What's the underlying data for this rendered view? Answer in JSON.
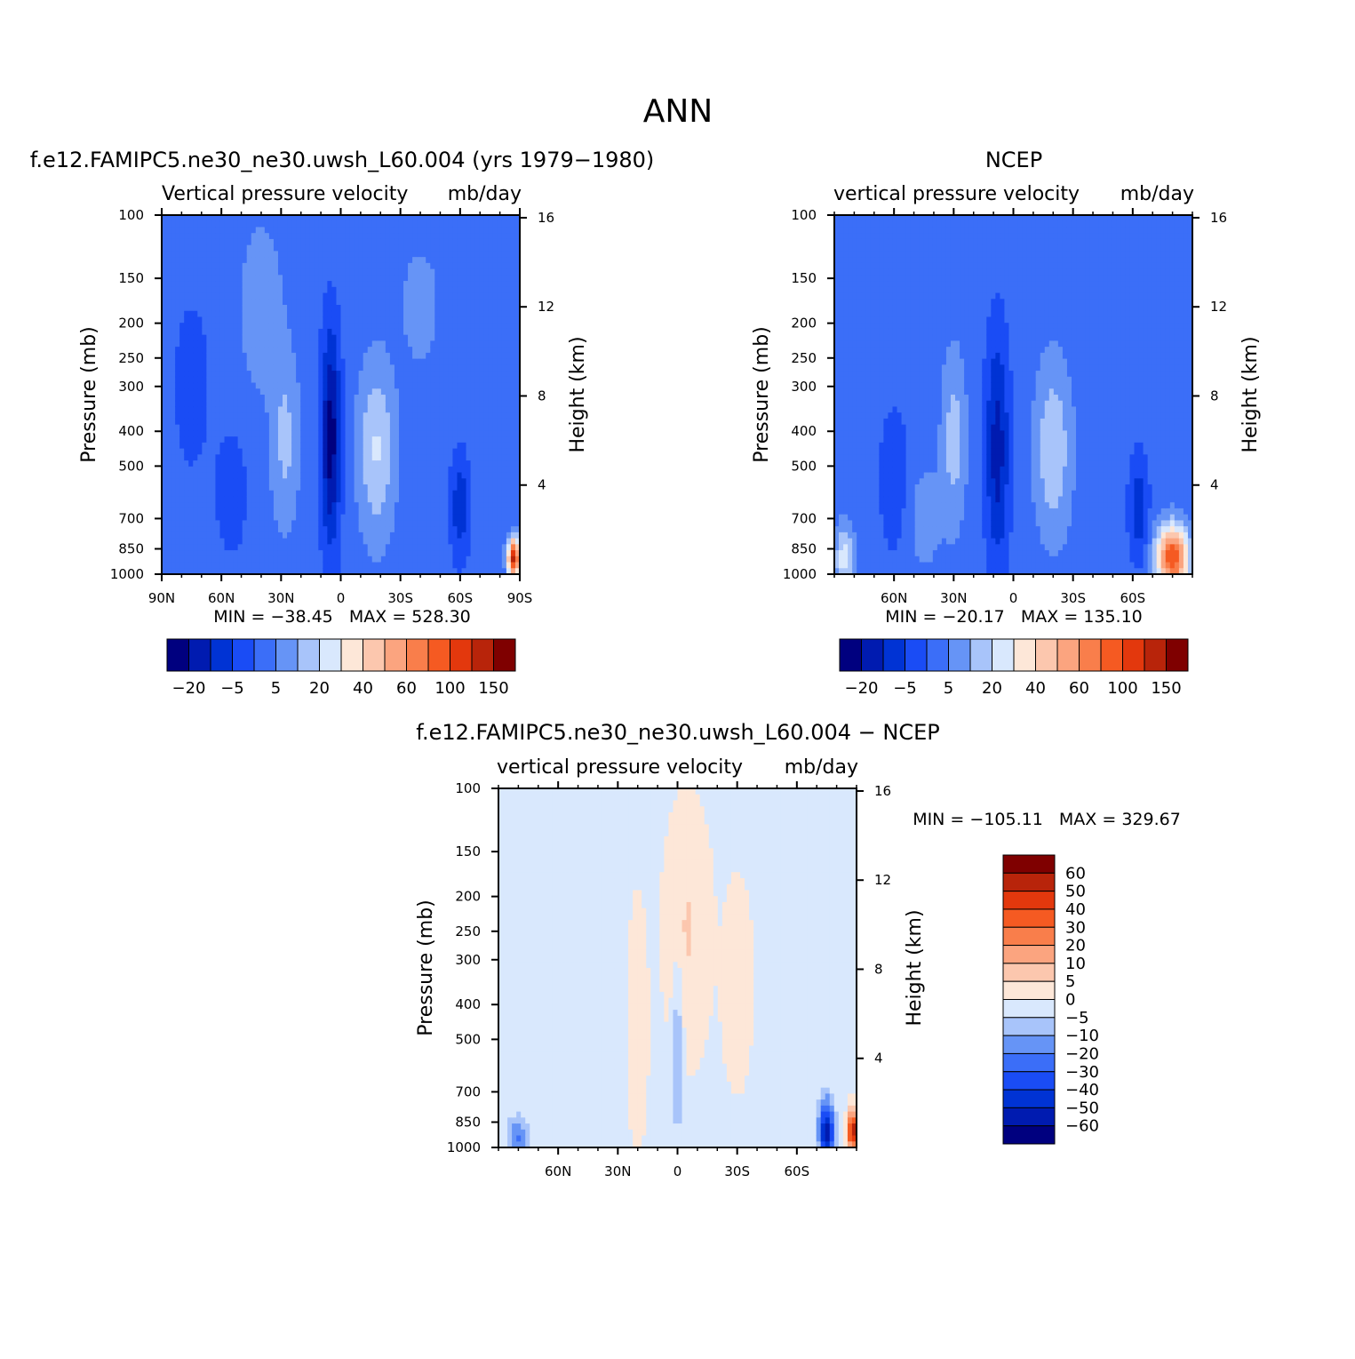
{
  "figure": {
    "title": "ANN"
  },
  "colors": {
    "main_scale": [
      "#00007f",
      "#001bb0",
      "#0033d4",
      "#1a4cf5",
      "#3b6ef8",
      "#6694f6",
      "#a8c4fa",
      "#d9e8fd",
      "#fde7d8",
      "#fcc7ae",
      "#fba47f",
      "#f97e4b",
      "#f55a22",
      "#e3380d",
      "#b8240a",
      "#7f0000"
    ],
    "diff_scale": [
      "#00007f",
      "#001bb0",
      "#0033d4",
      "#1a4cf5",
      "#3b6ef8",
      "#6694f6",
      "#a8c4fa",
      "#d9e8fd",
      "#fde7d8",
      "#fcc7ae",
      "#fba47f",
      "#f97e4b",
      "#f55a22",
      "#e3380d",
      "#b8240a",
      "#7f0000"
    ]
  },
  "chart_data": [
    {
      "id": "model",
      "type": "contour",
      "title": "f.e12.FAMIPC5.ne30_ne30.uwsh_L60.004 (yrs 1979−1980)",
      "variable": "Vertical pressure velocity",
      "units": "mb/day",
      "ylabel": "Pressure (mb)",
      "y2label": "Height (km)",
      "xticks": [
        "90N",
        "60N",
        "30N",
        "0",
        "30S",
        "60S",
        "90S"
      ],
      "xlim": [
        90,
        -90
      ],
      "yticks": [
        100,
        150,
        200,
        250,
        300,
        400,
        500,
        700,
        850,
        1000
      ],
      "ylim": [
        1000,
        100
      ],
      "yscale": "log",
      "y2ticks": [
        16,
        12,
        8,
        4
      ],
      "min": "-38.45",
      "max": "528.30",
      "stats_text": "MIN = −38.45   MAX = 528.30",
      "colorbar_labels": [
        "−20",
        "−5",
        "5",
        "20",
        "40",
        "60",
        "100",
        "150"
      ],
      "fields": {
        "base": 4,
        "blobs": [
          {
            "lat": 5,
            "lat_w": 5,
            "p": 420,
            "p_w": 0.7,
            "amp": -4.0
          },
          {
            "lat": -18,
            "lat_w": 9,
            "p": 450,
            "p_w": 0.55,
            "amp": 2.6
          },
          {
            "lat": 28,
            "lat_w": 7,
            "p": 420,
            "p_w": 0.55,
            "amp": 1.8
          },
          {
            "lat": -60,
            "lat_w": 5,
            "p": 650,
            "p_w": 0.35,
            "amp": -2.2
          },
          {
            "lat": 55,
            "lat_w": 8,
            "p": 600,
            "p_w": 0.4,
            "amp": -1.2
          },
          {
            "lat": 75,
            "lat_w": 10,
            "p": 300,
            "p_w": 0.6,
            "amp": -1.0
          },
          {
            "lat": 40,
            "lat_w": 10,
            "p": 180,
            "p_w": 0.5,
            "amp": 1.4
          },
          {
            "lat": -40,
            "lat_w": 10,
            "p": 180,
            "p_w": 0.4,
            "amp": 1.0
          },
          {
            "lat": -87,
            "lat_w": 3,
            "p": 900,
            "p_w": 0.12,
            "amp": 10.0
          }
        ]
      }
    },
    {
      "id": "obs",
      "type": "contour",
      "title": "NCEP",
      "variable": "vertical pressure velocity",
      "units": "mb/day",
      "ylabel": "Pressure (mb)",
      "y2label": "Height (km)",
      "xticks": [
        "60N",
        "30N",
        "0",
        "30S",
        "60S"
      ],
      "xlim": [
        90,
        -90
      ],
      "yticks": [
        100,
        150,
        200,
        250,
        300,
        400,
        500,
        700,
        850,
        1000
      ],
      "ylim": [
        1000,
        100
      ],
      "yscale": "log",
      "y2ticks": [
        16,
        12,
        8,
        4
      ],
      "min": "-20.17",
      "max": "135.10",
      "stats_text": "MIN = −20.17   MAX = 135.10",
      "colorbar_labels": [
        "−20",
        "−5",
        "5",
        "20",
        "40",
        "60",
        "100",
        "150"
      ],
      "fields": {
        "base": 4,
        "blobs": [
          {
            "lat": 8,
            "lat_w": 6,
            "p": 450,
            "p_w": 0.75,
            "amp": -3.0
          },
          {
            "lat": -20,
            "lat_w": 9,
            "p": 450,
            "p_w": 0.55,
            "amp": 2.4
          },
          {
            "lat": 30,
            "lat_w": 6,
            "p": 420,
            "p_w": 0.55,
            "amp": 2.0
          },
          {
            "lat": -63,
            "lat_w": 5,
            "p": 650,
            "p_w": 0.35,
            "amp": -2.2
          },
          {
            "lat": 60,
            "lat_w": 7,
            "p": 550,
            "p_w": 0.45,
            "amp": -1.5
          },
          {
            "lat": 45,
            "lat_w": 9,
            "p": 700,
            "p_w": 0.35,
            "amp": 1.0
          },
          {
            "lat": 85,
            "lat_w": 5,
            "p": 900,
            "p_w": 0.2,
            "amp": 3.0
          },
          {
            "lat": -80,
            "lat_w": 8,
            "p": 900,
            "p_w": 0.2,
            "amp": 8.5
          }
        ]
      }
    },
    {
      "id": "diff",
      "type": "contour",
      "title": "f.e12.FAMIPC5.ne30_ne30.uwsh_L60.004 − NCEP",
      "variable": "vertical pressure velocity",
      "units": "mb/day",
      "ylabel": "Pressure (mb)",
      "y2label": "Height (km)",
      "xticks": [
        "60N",
        "30N",
        "0",
        "30S",
        "60S"
      ],
      "xlim": [
        90,
        -90
      ],
      "yticks": [
        100,
        150,
        200,
        250,
        300,
        400,
        500,
        700,
        850,
        1000
      ],
      "ylim": [
        1000,
        100
      ],
      "yscale": "log",
      "y2ticks": [
        16,
        12,
        8,
        4
      ],
      "min": "-105.11",
      "max": "329.67",
      "stats_text": "MIN = −105.11   MAX = 329.67",
      "colorbar_labels": [
        "60",
        "50",
        "40",
        "30",
        "20",
        "10",
        "5",
        "0",
        "−5",
        "−10",
        "−20",
        "−30",
        "−40",
        "−50",
        "−60"
      ],
      "fields": {
        "base": 7.4,
        "blobs": [
          {
            "lat": -5,
            "lat_w": 9,
            "p": 250,
            "p_w": 0.6,
            "amp": 1.2
          },
          {
            "lat": -30,
            "lat_w": 6,
            "p": 350,
            "p_w": 0.5,
            "amp": 0.8
          },
          {
            "lat": 20,
            "lat_w": 4,
            "p": 450,
            "p_w": 0.6,
            "amp": 0.8
          },
          {
            "lat": 0,
            "lat_w": 2.5,
            "p": 550,
            "p_w": 0.6,
            "amp": -2.0
          },
          {
            "lat": -75,
            "lat_w": 4,
            "p": 900,
            "p_w": 0.2,
            "amp": -6.5
          },
          {
            "lat": 80,
            "lat_w": 6,
            "p": 950,
            "p_w": 0.15,
            "amp": -3.0
          },
          {
            "lat": -88,
            "lat_w": 2,
            "p": 900,
            "p_w": 0.12,
            "amp": 8.0
          }
        ]
      }
    }
  ]
}
